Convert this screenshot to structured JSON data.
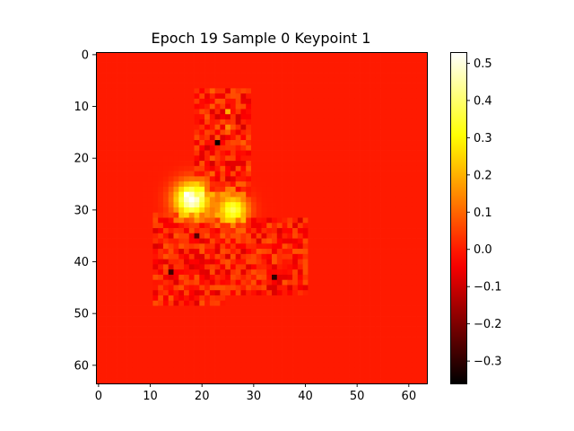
{
  "chart_data": {
    "type": "heatmap",
    "title": "Epoch 19 Sample 0 Keypoint 1",
    "xlabel": "",
    "ylabel": "",
    "grid_size": [
      64,
      64
    ],
    "x_range": [
      -0.5,
      63.5
    ],
    "y_range": [
      -0.5,
      63.5
    ],
    "y_axis_direction": "top-down",
    "x_ticks": [
      0,
      10,
      20,
      30,
      40,
      50,
      60
    ],
    "x_tick_labels": [
      "0",
      "10",
      "20",
      "30",
      "40",
      "50",
      "60"
    ],
    "y_ticks": [
      0,
      10,
      20,
      30,
      40,
      50,
      60
    ],
    "y_tick_labels": [
      "0",
      "10",
      "20",
      "30",
      "40",
      "50",
      "60"
    ],
    "colormap": "hot",
    "colorbar": {
      "vmin": -0.36,
      "vmax": 0.53,
      "ticks": [
        -0.3,
        -0.2,
        -0.1,
        0.0,
        0.1,
        0.2,
        0.3,
        0.4,
        0.5
      ],
      "tick_labels": [
        "−0.3",
        "−0.2",
        "−0.1",
        "0.0",
        "0.1",
        "0.2",
        "0.3",
        "0.4",
        "0.5"
      ]
    },
    "background_value": 0.0,
    "grid": false,
    "blobs": [
      {
        "x": 18,
        "y": 28,
        "peak": 0.53,
        "sigma": 2.3
      },
      {
        "x": 26,
        "y": 30,
        "peak": 0.38,
        "sigma": 2.0
      }
    ],
    "noise_regions": [
      {
        "x0": 19,
        "y0": 7,
        "x1": 29,
        "y1": 27,
        "amp": 0.09
      },
      {
        "x0": 11,
        "y0": 31,
        "x1": 24,
        "y1": 48,
        "amp": 0.08
      },
      {
        "x0": 25,
        "y0": 32,
        "x1": 40,
        "y1": 46,
        "amp": 0.08
      }
    ],
    "notable_cells": [
      {
        "x": 23,
        "y": 17,
        "value": -0.35
      },
      {
        "x": 34,
        "y": 43,
        "value": -0.3
      },
      {
        "x": 14,
        "y": 42,
        "value": -0.28
      },
      {
        "x": 19,
        "y": 35,
        "value": -0.25
      },
      {
        "x": 17,
        "y": 27,
        "value": 0.53
      },
      {
        "x": 25,
        "y": 11,
        "value": 0.2
      },
      {
        "x": 25,
        "y": 14,
        "value": 0.15
      }
    ]
  }
}
